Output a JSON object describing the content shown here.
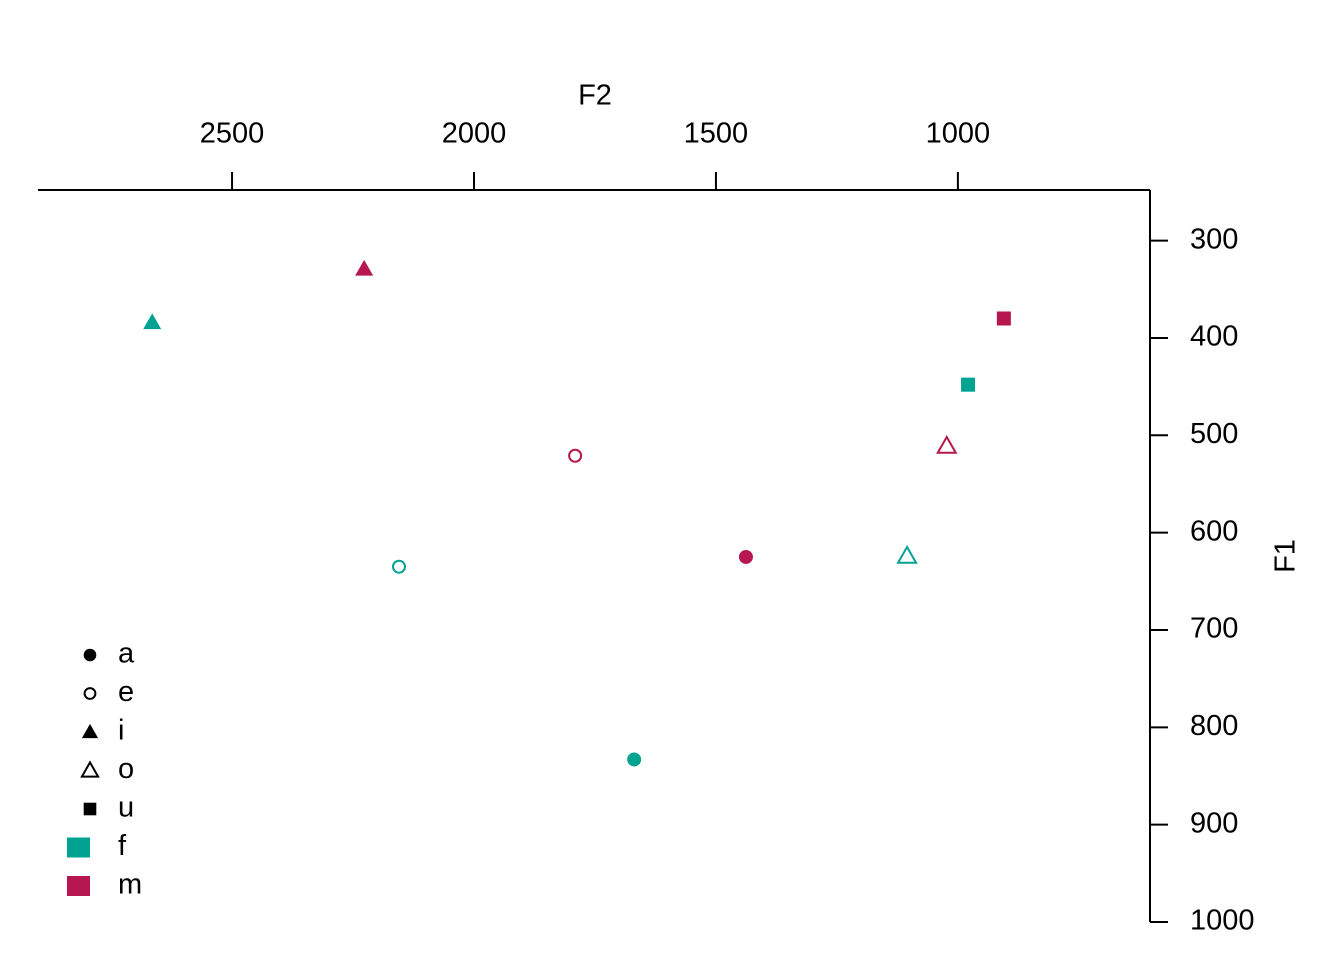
{
  "chart_data": {
    "type": "scatter",
    "x_label": "F2",
    "y_label": "F1",
    "xlim": [
      2901,
      603
    ],
    "ylim": [
      248,
      1000
    ],
    "xticks": [
      2500,
      2000,
      1500,
      1000
    ],
    "yticks": [
      300,
      400,
      500,
      600,
      700,
      800,
      900,
      1000
    ],
    "shapes": [
      {
        "name": "a",
        "shape": "filled-circle"
      },
      {
        "name": "e",
        "shape": "open-circle"
      },
      {
        "name": "i",
        "shape": "filled-triangle"
      },
      {
        "name": "o",
        "shape": "open-triangle"
      },
      {
        "name": "u",
        "shape": "filled-square"
      }
    ],
    "series": [
      {
        "name": "f",
        "color": "#00a391",
        "vowel": [
          "a",
          "e",
          "i",
          "o",
          "u"
        ],
        "x": [
          1669,
          2155,
          2665,
          1105,
          979
        ],
        "values": [
          833,
          635,
          384,
          624,
          448
        ]
      },
      {
        "name": "m",
        "color": "#b5174e",
        "vowel": [
          "a",
          "e",
          "i",
          "o",
          "u"
        ],
        "x": [
          1438,
          1791,
          2227,
          1023,
          905
        ],
        "values": [
          625,
          521,
          329,
          511,
          380
        ]
      }
    ]
  }
}
